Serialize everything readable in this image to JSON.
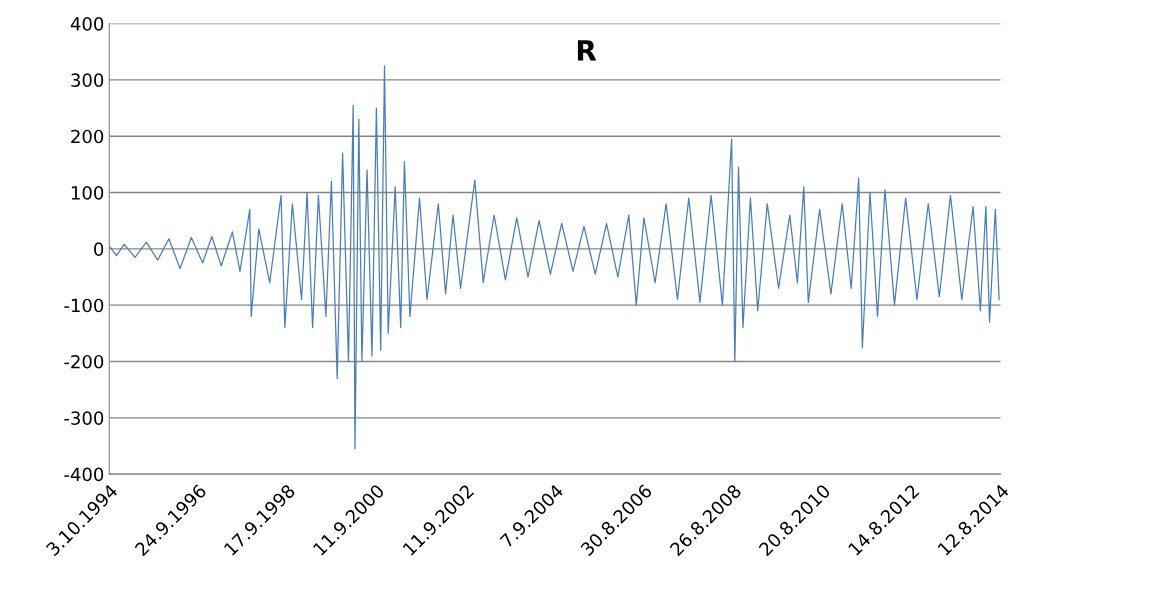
{
  "chart_data": {
    "type": "line",
    "title": "R",
    "grid": "y",
    "legend": false,
    "marker": "none",
    "line_style": "solid",
    "xlim": [
      "1994-10-03",
      "2014-08-12"
    ],
    "xticks": [
      {
        "value": "1994-10-03",
        "label": "3.10.1994"
      },
      {
        "value": "1996-09-24",
        "label": "24.9.1996"
      },
      {
        "value": "1998-09-17",
        "label": "17.9.1998"
      },
      {
        "value": "2000-09-11",
        "label": "11.9.2000"
      },
      {
        "value": "2002-09-11",
        "label": "11.9.2002"
      },
      {
        "value": "2004-09-07",
        "label": "7.9.2004"
      },
      {
        "value": "2006-08-30",
        "label": "30.8.2006"
      },
      {
        "value": "2008-08-26",
        "label": "26.8.2008"
      },
      {
        "value": "2010-08-20",
        "label": "20.8.2010"
      },
      {
        "value": "2012-08-14",
        "label": "14.8.2012"
      },
      {
        "value": "2014-08-12",
        "label": "12.8.2014"
      }
    ],
    "ylim": [
      -400,
      400
    ],
    "yticks": [
      -400,
      -300,
      -200,
      -100,
      0,
      100,
      200,
      300,
      400
    ],
    "x": [
      "1994-10-03",
      "1994-12-01",
      "1995-02-01",
      "1995-05-01",
      "1995-08-01",
      "1995-11-01",
      "1996-02-01",
      "1996-05-01",
      "1996-08-01",
      "1996-11-01",
      "1997-01-15",
      "1997-04-01",
      "1997-07-01",
      "1997-09-01",
      "1997-11-20",
      "1997-12-01",
      "1998-02-01",
      "1998-05-01",
      "1998-08-01",
      "1998-09-01",
      "1998-11-01",
      "1999-01-15",
      "1999-03-01",
      "1999-04-15",
      "1999-06-01",
      "1999-08-01",
      "1999-09-15",
      "1999-11-01",
      "1999-12-15",
      "2000-02-01",
      "2000-03-10",
      "2000-03-25",
      "2000-04-25",
      "2000-05-20",
      "2000-07-01",
      "2000-08-10",
      "2000-09-15",
      "2000-10-20",
      "2000-11-20",
      "2000-12-20",
      "2001-02-15",
      "2001-04-01",
      "2001-05-01",
      "2001-06-15",
      "2001-09-01",
      "2001-11-01",
      "2002-02-01",
      "2002-04-01",
      "2002-06-01",
      "2002-08-01",
      "2002-11-25",
      "2003-02-01",
      "2003-05-01",
      "2003-08-01",
      "2003-11-01",
      "2004-02-01",
      "2004-05-01",
      "2004-08-01",
      "2004-11-01",
      "2005-02-01",
      "2005-05-01",
      "2005-08-01",
      "2005-11-01",
      "2006-02-01",
      "2006-05-01",
      "2006-07-01",
      "2006-09-01",
      "2006-12-01",
      "2007-03-01",
      "2007-06-01",
      "2007-09-01",
      "2007-12-01",
      "2008-03-01",
      "2008-06-01",
      "2008-08-15",
      "2008-09-10",
      "2008-10-10",
      "2008-11-15",
      "2009-01-15",
      "2009-03-15",
      "2009-06-01",
      "2009-09-01",
      "2009-12-01",
      "2010-02-01",
      "2010-03-25",
      "2010-05-01",
      "2010-08-01",
      "2010-11-01",
      "2011-02-01",
      "2011-04-15",
      "2011-06-15",
      "2011-07-15",
      "2011-09-15",
      "2011-11-15",
      "2012-01-15",
      "2012-04-01",
      "2012-07-01",
      "2012-10-01",
      "2013-01-01",
      "2013-04-01",
      "2013-07-01",
      "2013-10-01",
      "2014-01-01",
      "2014-03-01",
      "2014-04-15",
      "2014-05-15",
      "2014-07-01",
      "2014-08-01"
    ],
    "series": [
      {
        "color": "#4a7ebb",
        "values": [
          5,
          -12,
          8,
          -15,
          12,
          -20,
          18,
          -35,
          20,
          -25,
          22,
          -30,
          30,
          -40,
          70,
          -120,
          35,
          -60,
          95,
          -140,
          80,
          -90,
          100,
          -140,
          95,
          -120,
          120,
          -230,
          170,
          -200,
          255,
          -355,
          230,
          -200,
          140,
          -190,
          250,
          -180,
          325,
          -150,
          110,
          -140,
          155,
          -120,
          90,
          -90,
          80,
          -80,
          60,
          -70,
          122,
          -60,
          60,
          -55,
          55,
          -50,
          50,
          -45,
          45,
          -40,
          40,
          -45,
          45,
          -50,
          60,
          -100,
          55,
          -60,
          80,
          -90,
          90,
          -95,
          95,
          -100,
          195,
          -200,
          145,
          -140,
          90,
          -110,
          80,
          -70,
          60,
          -60,
          110,
          -95,
          70,
          -80,
          80,
          -70,
          125,
          -175,
          100,
          -120,
          105,
          -100,
          90,
          -90,
          80,
          -85,
          95,
          -90,
          75,
          -110,
          75,
          -130,
          70,
          -90
        ]
      }
    ]
  }
}
